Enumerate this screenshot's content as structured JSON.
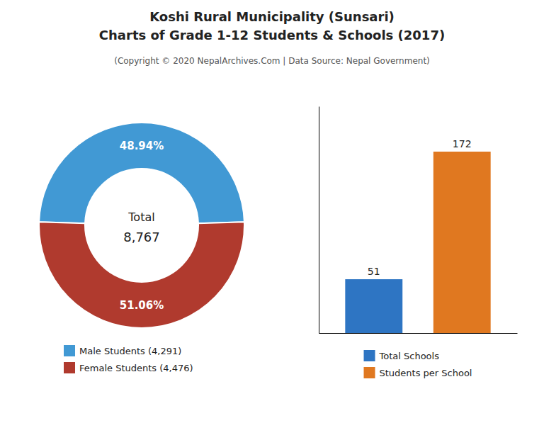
{
  "chart_data": [
    {
      "type": "donut",
      "title": [
        "Koshi Rural Municipality (Sunsari)",
        "Charts of Grade 1-12 Students & Schools (2017)"
      ],
      "subtitle": "(Copyright © 2020 NepalArchives.Com | Data Source: Nepal Government)",
      "categories": [
        "Male Students (4,291)",
        "Female Students (4,476)"
      ],
      "values": [
        48.94,
        51.06
      ],
      "value_labels": [
        "48.94%",
        "51.06%"
      ],
      "data_labels": true,
      "colors": [
        "#4199d4",
        "#b03a2e"
      ],
      "annotations": [
        "Total",
        "8,767"
      ],
      "legend": "bottom"
    },
    {
      "type": "bar",
      "categories": [
        "Total Schools",
        "Students per School"
      ],
      "values": [
        51,
        172
      ],
      "colors": [
        "#2e75c3",
        "#e07820"
      ],
      "ylim": [
        0,
        215
      ],
      "data_labels": true,
      "tick_labels": false,
      "legend": "bottom"
    }
  ]
}
